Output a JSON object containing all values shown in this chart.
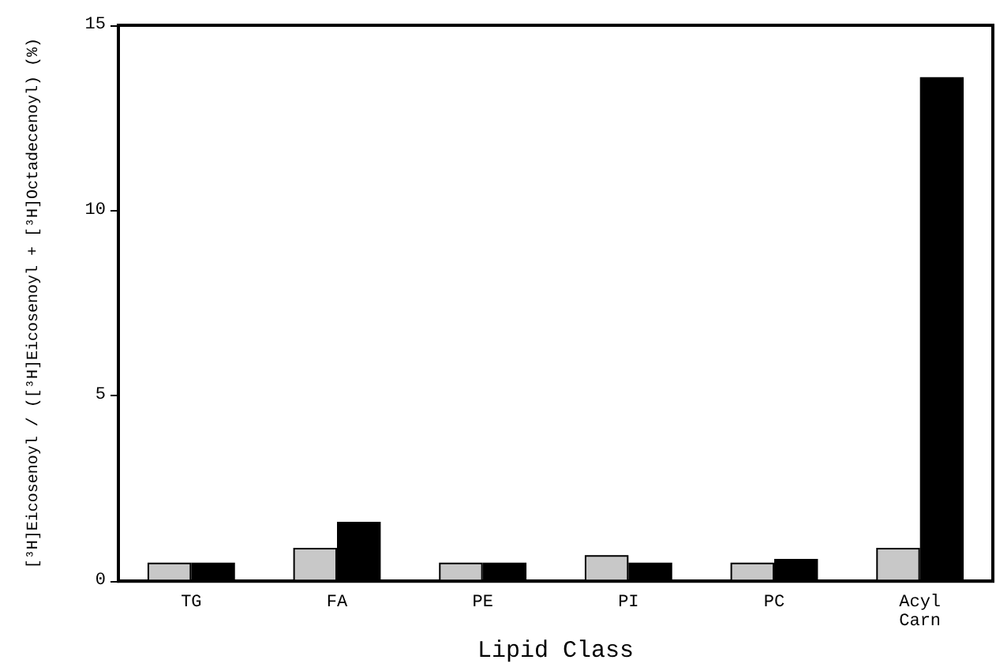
{
  "chart_data": {
    "type": "bar",
    "xlabel": "Lipid Class",
    "ylabel": "[³H]Eicosenoyl / ([³H]Eicosenoyl + [³H]Octadecenoyl) (%)",
    "categories": [
      "TG",
      "FA",
      "PE",
      "PI",
      "PC",
      "Acyl\nCarn"
    ],
    "series": [
      {
        "color": "#c8c8c8",
        "values": [
          0.5,
          0.9,
          0.5,
          0.7,
          0.5,
          0.9
        ]
      },
      {
        "color": "#000000",
        "values": [
          0.5,
          1.6,
          0.5,
          0.5,
          0.6,
          13.6
        ]
      }
    ],
    "ylim": [
      0,
      15
    ],
    "yticks": [
      0,
      5,
      10,
      15
    ],
    "grid": false
  }
}
